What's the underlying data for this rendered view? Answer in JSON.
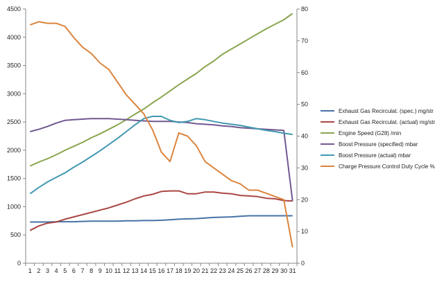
{
  "chart_data": {
    "type": "line",
    "title": "",
    "xlabel": "",
    "ylabel": "",
    "x": [
      1,
      2,
      3,
      4,
      5,
      6,
      7,
      8,
      9,
      10,
      11,
      12,
      13,
      14,
      15,
      16,
      17,
      18,
      19,
      20,
      21,
      22,
      23,
      24,
      25,
      26,
      27,
      28,
      29,
      30,
      31
    ],
    "x_tick_labels": [
      "1",
      "2",
      "3",
      "4",
      "5",
      "6",
      "7",
      "8",
      "9",
      "10",
      "11",
      "12",
      "13",
      "14",
      "15",
      "16",
      "17",
      "18",
      "19",
      "20",
      "21",
      "22",
      "23",
      "24",
      "25",
      "26",
      "27",
      "28",
      "29",
      "30",
      "31"
    ],
    "ylim": [
      0,
      4500
    ],
    "yticks": [
      0,
      500,
      1000,
      1500,
      2000,
      2500,
      3000,
      3500,
      4000,
      4500
    ],
    "y2lim": [
      0,
      80
    ],
    "y2ticks": [
      0,
      10,
      20,
      30,
      40,
      50,
      60,
      70,
      80
    ],
    "grid": false,
    "legend_position": "right",
    "series": [
      {
        "name": "Exhaust Gas Recirculat. (spec.)  mg/str",
        "axis": "left",
        "color": "#4572a7",
        "values": [
          730,
          730,
          730,
          735,
          735,
          735,
          740,
          745,
          745,
          745,
          745,
          750,
          750,
          755,
          755,
          760,
          770,
          780,
          785,
          790,
          800,
          810,
          815,
          820,
          830,
          840,
          840,
          840,
          840,
          840,
          840
        ]
      },
      {
        "name": "Exhaust Gas Recirculat. (actual)  mg/str",
        "axis": "left",
        "color": "#aa4643",
        "values": [
          580,
          660,
          710,
          730,
          780,
          820,
          860,
          900,
          940,
          980,
          1030,
          1080,
          1140,
          1190,
          1220,
          1270,
          1280,
          1280,
          1230,
          1230,
          1260,
          1260,
          1240,
          1230,
          1200,
          1190,
          1180,
          1150,
          1140,
          1110,
          1100
        ]
      },
      {
        "name": "Engine Speed (G28)  /min",
        "axis": "left",
        "color": "#89a54e",
        "values": [
          1720,
          1790,
          1850,
          1920,
          2000,
          2070,
          2140,
          2220,
          2290,
          2370,
          2450,
          2540,
          2640,
          2730,
          2840,
          2940,
          3050,
          3160,
          3260,
          3360,
          3480,
          3580,
          3700,
          3790,
          3880,
          3970,
          4060,
          4150,
          4230,
          4310,
          4420
        ]
      },
      {
        "name": "Boost Pressure (specified)  mbar",
        "axis": "left",
        "color": "#71588f",
        "values": [
          2330,
          2370,
          2420,
          2480,
          2530,
          2540,
          2550,
          2560,
          2560,
          2560,
          2550,
          2540,
          2530,
          2520,
          2510,
          2510,
          2510,
          2500,
          2490,
          2470,
          2460,
          2450,
          2430,
          2420,
          2400,
          2390,
          2380,
          2370,
          2360,
          2350,
          1100
        ]
      },
      {
        "name": "Boost Pressure (actual)  mbar",
        "axis": "left",
        "color": "#4198af",
        "values": [
          1230,
          1340,
          1440,
          1520,
          1600,
          1700,
          1790,
          1890,
          1990,
          2100,
          2210,
          2330,
          2450,
          2560,
          2600,
          2600,
          2530,
          2490,
          2510,
          2560,
          2540,
          2510,
          2480,
          2460,
          2440,
          2410,
          2380,
          2350,
          2330,
          2300,
          2280
        ]
      },
      {
        "name": "Charge Pressure Control Duty Cycle  %",
        "axis": "right",
        "color": "#db843d",
        "values": [
          75,
          76,
          75.5,
          75.5,
          74.5,
          71,
          68,
          66,
          63,
          61,
          57,
          53,
          50,
          47,
          42,
          35,
          32,
          41,
          40,
          37,
          32,
          30,
          28,
          26,
          25,
          23,
          23,
          22,
          21,
          20,
          5
        ]
      }
    ]
  }
}
